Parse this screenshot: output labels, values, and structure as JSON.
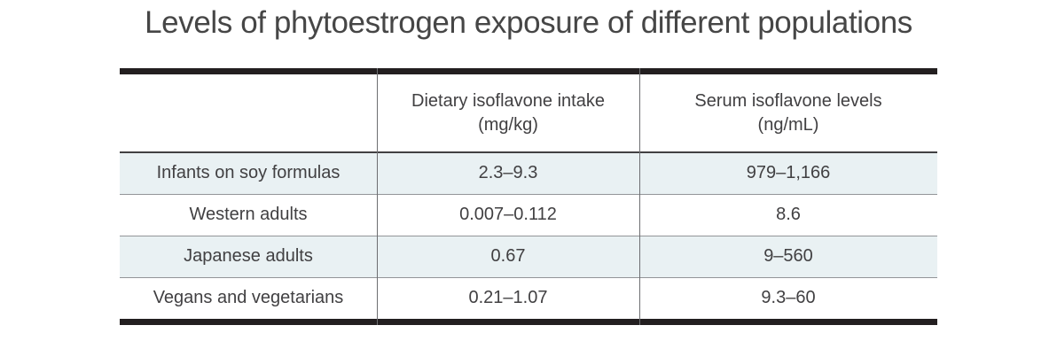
{
  "title": "Levels of phytoestrogen exposure of different populations",
  "chart_data": {
    "type": "table",
    "title": "Levels of phytoestrogen exposure of different populations",
    "columns": [
      {
        "label": "",
        "unit": ""
      },
      {
        "label": "Dietary isoflavone intake",
        "unit": "(mg/kg)"
      },
      {
        "label": "Serum isoflavone levels",
        "unit": "(ng/mL)"
      }
    ],
    "rows": [
      {
        "population": "Infants on soy formulas",
        "intake": "2.3–9.3",
        "serum": "979–1,166"
      },
      {
        "population": "Western adults",
        "intake": "0.007–0.112",
        "serum": "8.6"
      },
      {
        "population": "Japanese adults",
        "intake": "0.67",
        "serum": "9–560"
      },
      {
        "population": "Vegans and vegetarians",
        "intake": "0.21–1.07",
        "serum": "9.3–60"
      }
    ],
    "layout": {
      "shaded_row_indices": [
        0,
        2
      ],
      "cell_alignment": "center",
      "legend": "none",
      "grid": "horizontal-separators-with-column-dividers"
    }
  },
  "colors": {
    "background": "#ffffff",
    "row_shading": "#e9f1f3",
    "thick_border": "#231f20",
    "header_underline": "#414042",
    "row_separator": "#939598",
    "column_divider": "#6d6e71",
    "text": "#414042"
  }
}
